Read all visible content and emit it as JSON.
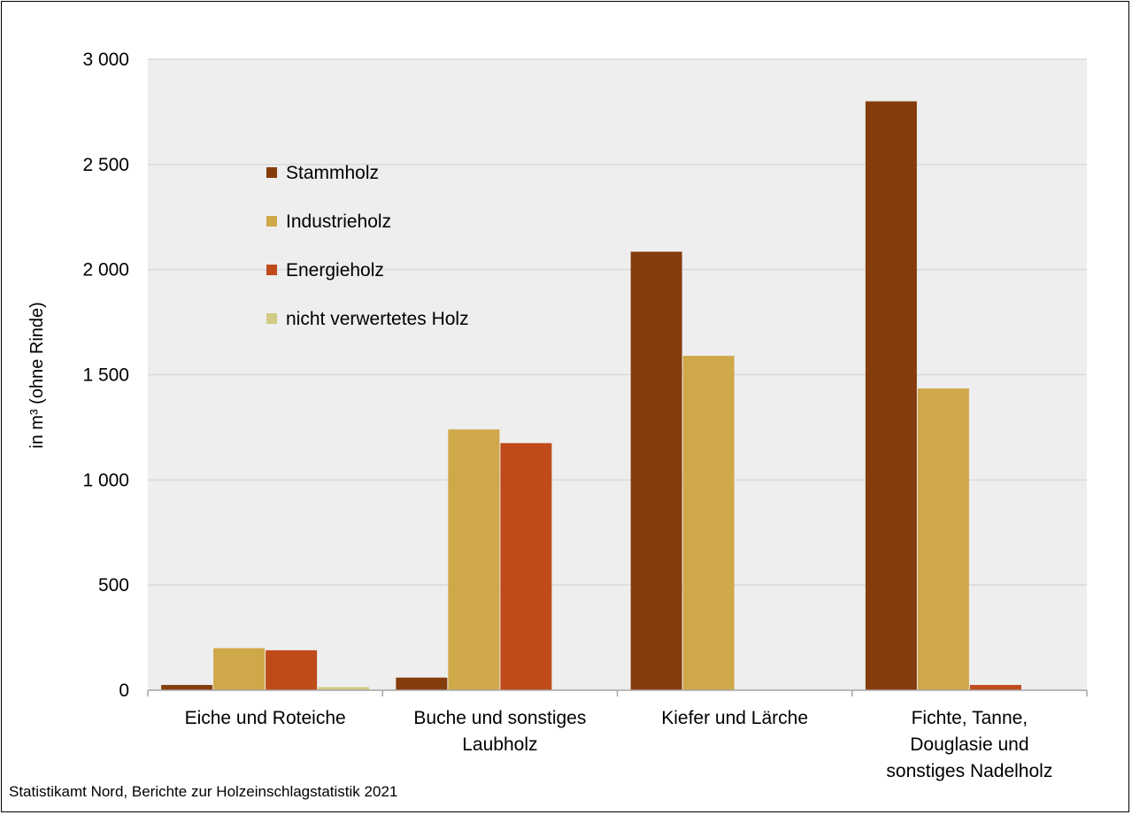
{
  "chart_data": {
    "type": "bar",
    "title": "",
    "xlabel": "",
    "ylabel": "in m³ (ohne Rinde)",
    "ylim": [
      0,
      3000
    ],
    "yticks": [
      0,
      500,
      1000,
      1500,
      2000,
      2500,
      3000
    ],
    "ytick_labels": [
      "0",
      "500",
      "1 000",
      "1 500",
      "2 000",
      "2 500",
      "3 000"
    ],
    "grid": true,
    "legend_position": "top-left",
    "categories": [
      [
        "Eiche und Roteiche"
      ],
      [
        "Buche und sonstiges",
        "Laubholz"
      ],
      [
        "Kiefer und Lärche"
      ],
      [
        "Fichte, Tanne,",
        "Douglasie und",
        "sonstiges Nadelholz"
      ]
    ],
    "series": [
      {
        "name": "Stammholz",
        "color": "#843C0C",
        "values": [
          25,
          60,
          2085,
          2800
        ]
      },
      {
        "name": "Industrieholz",
        "color": "#CFA849",
        "values": [
          200,
          1240,
          1590,
          1435
        ]
      },
      {
        "name": "Energieholz",
        "color": "#BF4A1A",
        "values": [
          190,
          1175,
          0,
          25
        ]
      },
      {
        "name": "nicht verwertetes Holz",
        "color": "#D1CB84",
        "values": [
          15,
          0,
          0,
          0
        ]
      }
    ],
    "plot_background": "#EEEEEE",
    "gridline_color": "#D9D9D9"
  },
  "source": "Statistikamt  Nord, Berichte zur Holzeinschlagstatistik  2021"
}
